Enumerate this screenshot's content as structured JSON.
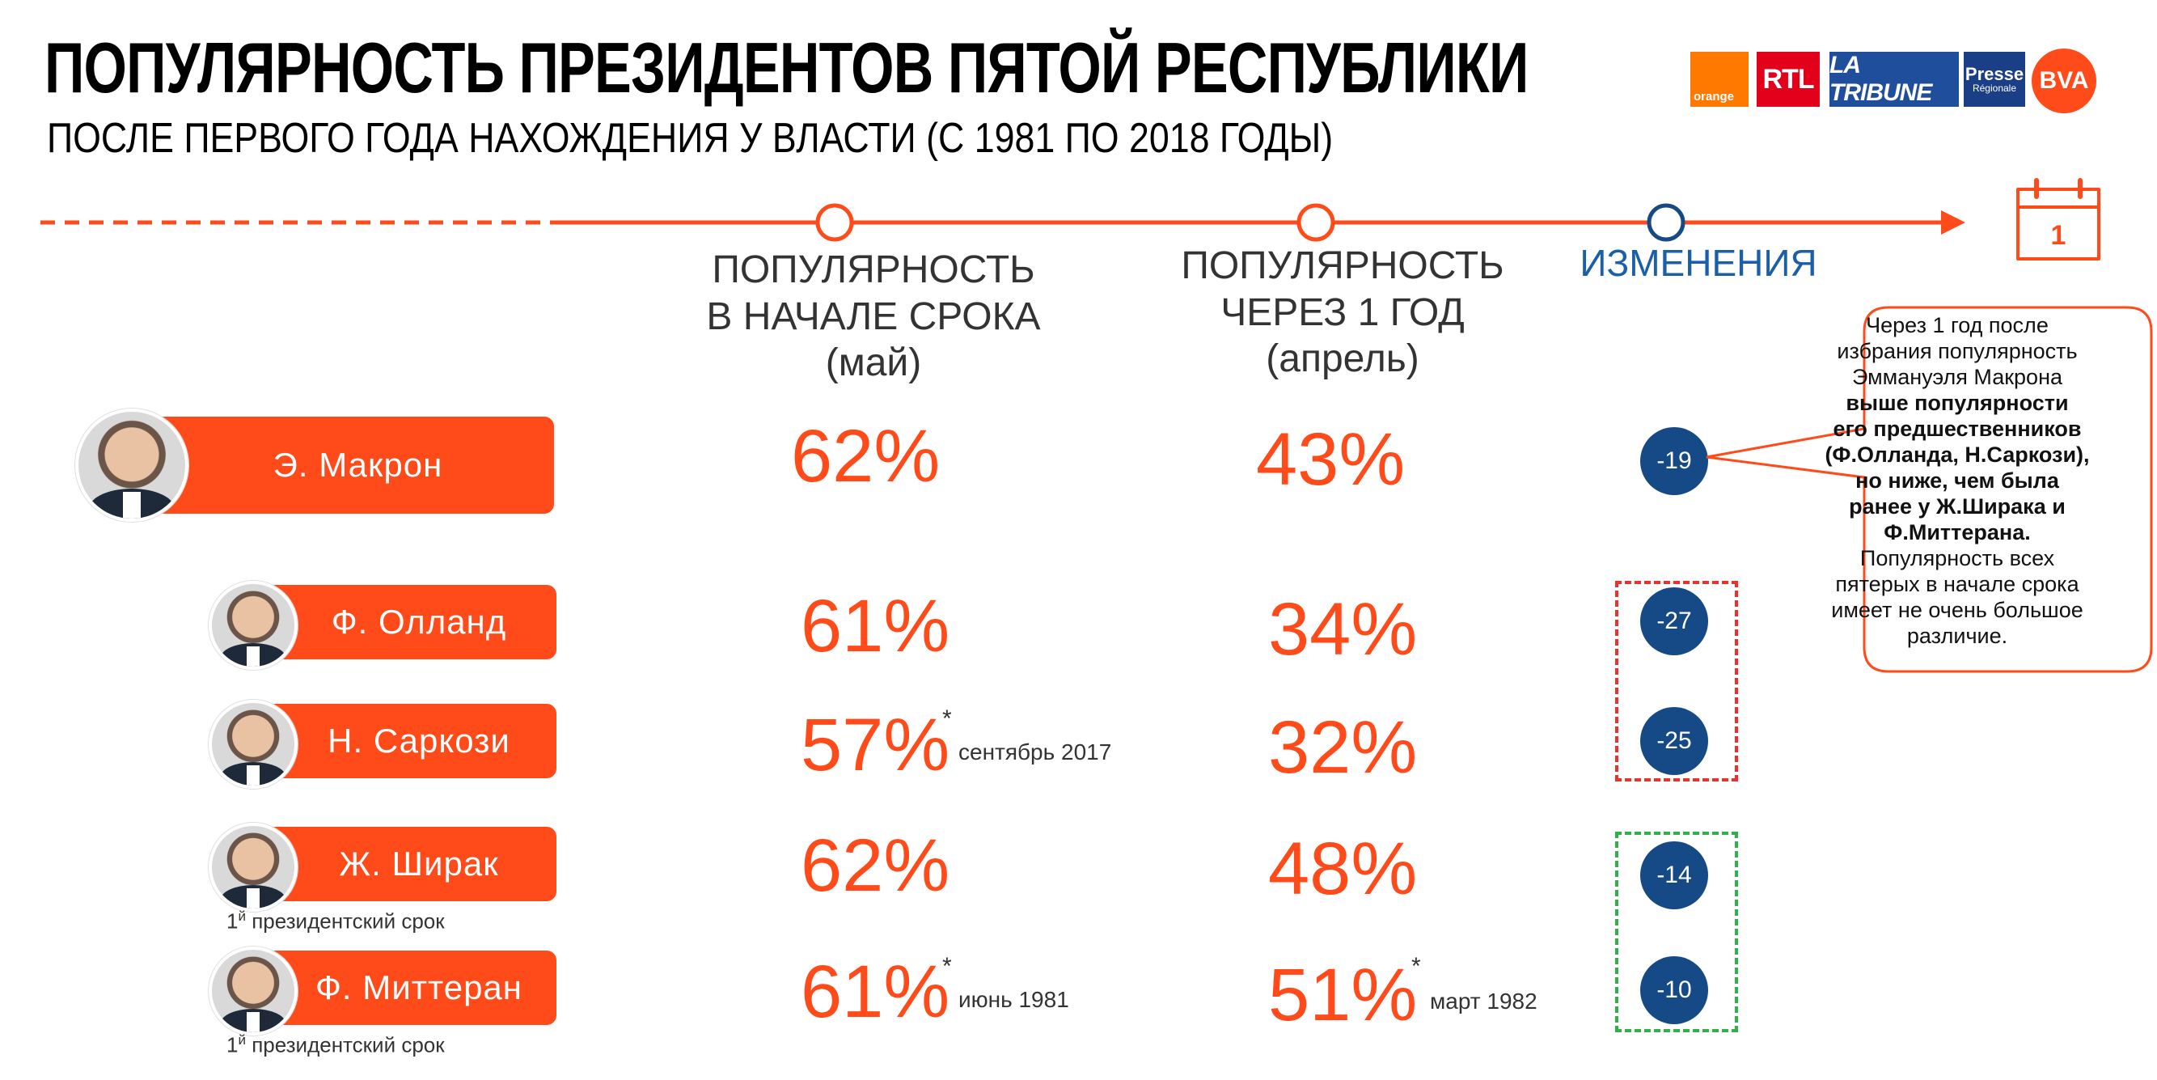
{
  "header": {
    "title": "ПОПУЛЯРНОСТЬ ПРЕЗИДЕНТОВ ПЯТОЙ РЕСПУБЛИКИ",
    "subtitle": "ПОСЛЕ ПЕРВОГО ГОДА НАХОЖДЕНИЯ У ВЛАСТИ (С 1981 ПО 2018 ГОДЫ)"
  },
  "logos": {
    "orange": "orange",
    "rtl": "RTL",
    "tribune": "LA TRIBUNE",
    "presse_1": "Presse",
    "presse_2": "Régionale",
    "bva": "BVA"
  },
  "calendar": {
    "number": "1"
  },
  "columns": {
    "start_line1": "ПОПУЛЯРНОСТЬ",
    "start_line2": "В НАЧАЛЕ СРОКА",
    "start_line3": "(май)",
    "after_line1": "ПОПУЛЯРНОСТЬ",
    "after_line2": "ЧЕРЕЗ 1 ГОД",
    "after_line3": "(апрель)",
    "change": "ИЗМЕНЕНИЯ"
  },
  "presidents": [
    {
      "name": "Э. Макрон",
      "start": "62%",
      "after": "43%",
      "change": "-19"
    },
    {
      "name": "Ф. Олланд",
      "start": "61%",
      "after": "34%",
      "change": "-27"
    },
    {
      "name": "Н. Саркози",
      "start": "57%",
      "start_star": "*",
      "start_note": "сентябрь 2017",
      "after": "32%",
      "change": "-25"
    },
    {
      "name": "Ж. Ширак",
      "start": "62%",
      "after": "48%",
      "change": "-14",
      "term_sup": "й",
      "term_num": "1",
      "term_text": " президентский срок"
    },
    {
      "name": "Ф. Миттеран",
      "start": "61%",
      "start_star": "*",
      "start_note": "июнь 1981",
      "after": "51%",
      "after_star": "*",
      "after_note": "март 1982",
      "change": "-10",
      "term_sup": "й",
      "term_num": "1",
      "term_text": " президентский срок"
    }
  ],
  "callout": {
    "l1": "Через 1 год после",
    "l2": "избрания популярность",
    "l3": "Эммануэля Макрона",
    "l4": "выше популярности",
    "l5": "его предшественников",
    "l6": "(Ф.Олланда, Н.Саркози),",
    "l7": "но ниже, чем была",
    "l8": "ранее у Ж.Ширака и",
    "l9": "Ф.Миттерана.",
    "l10": "Популярность всех",
    "l11": "пятерых в начале срока",
    "l12": "имеет не очень большое",
    "l13": "различие."
  },
  "colors": {
    "accent": "#ff4a1a",
    "change_badge": "#154a86",
    "change_header": "#1b5fa8",
    "box_negative": "#e8322b",
    "box_positive": "#2db34a"
  }
}
